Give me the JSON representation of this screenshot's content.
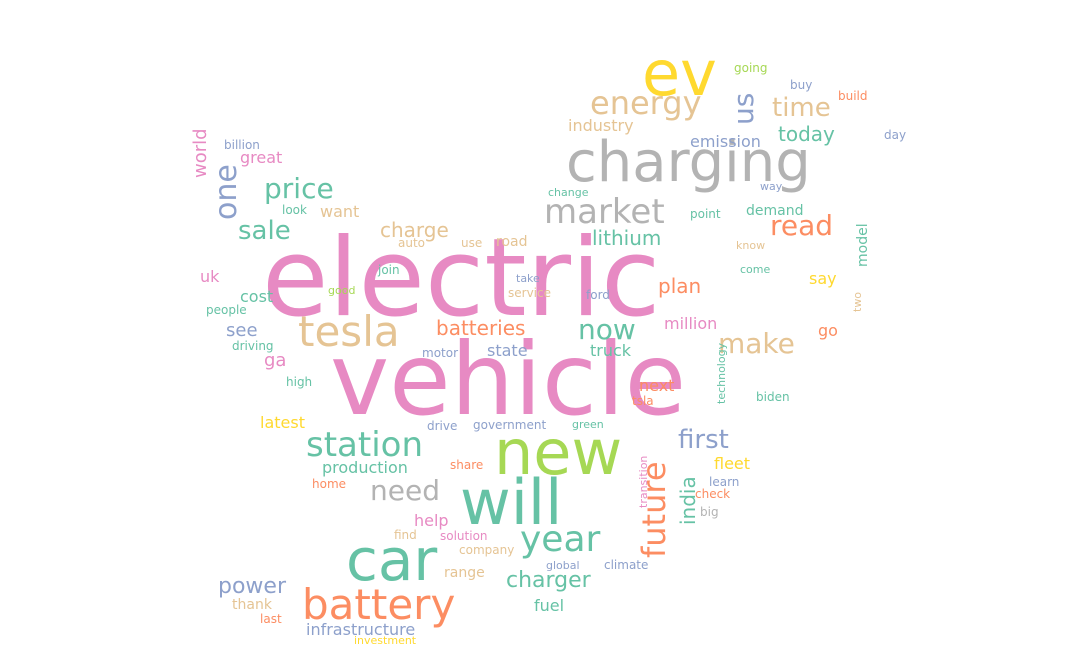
{
  "palette": {
    "pink": "#e78ac3",
    "teal": "#66c2a5",
    "orange": "#fc8d62",
    "blue": "#8da0cb",
    "green": "#a6d854",
    "yellow": "#ffd92f",
    "tan": "#e5c494",
    "gray": "#b3b3b3"
  },
  "words": [
    {
      "text": "electric",
      "color": "pink"
    },
    {
      "text": "vehicle",
      "color": "pink"
    },
    {
      "text": "charging",
      "color": "gray"
    },
    {
      "text": "ev",
      "color": "yellow"
    },
    {
      "text": "new",
      "color": "green"
    },
    {
      "text": "will",
      "color": "teal"
    },
    {
      "text": "car",
      "color": "teal"
    },
    {
      "text": "battery",
      "color": "orange"
    },
    {
      "text": "tesla",
      "color": "tan"
    },
    {
      "text": "energy",
      "color": "tan"
    },
    {
      "text": "us",
      "color": "blue"
    },
    {
      "text": "time",
      "color": "tan"
    },
    {
      "text": "market",
      "color": "gray"
    },
    {
      "text": "station",
      "color": "teal"
    },
    {
      "text": "year",
      "color": "teal"
    },
    {
      "text": "future",
      "color": "orange"
    },
    {
      "text": "price",
      "color": "teal"
    },
    {
      "text": "one",
      "color": "blue"
    },
    {
      "text": "sale",
      "color": "teal"
    },
    {
      "text": "read",
      "color": "orange"
    },
    {
      "text": "now",
      "color": "teal"
    },
    {
      "text": "make",
      "color": "tan"
    },
    {
      "text": "need",
      "color": "gray"
    },
    {
      "text": "first",
      "color": "blue"
    },
    {
      "text": "charger",
      "color": "teal"
    },
    {
      "text": "power",
      "color": "blue"
    },
    {
      "text": "today",
      "color": "teal"
    },
    {
      "text": "lithium",
      "color": "teal"
    },
    {
      "text": "charge",
      "color": "tan"
    },
    {
      "text": "plan",
      "color": "orange"
    },
    {
      "text": "batteries",
      "color": "orange"
    },
    {
      "text": "world",
      "color": "pink"
    },
    {
      "text": "india",
      "color": "teal"
    },
    {
      "text": "emission",
      "color": "blue"
    },
    {
      "text": "industry",
      "color": "tan"
    },
    {
      "text": "infrastructure",
      "color": "blue"
    },
    {
      "text": "production",
      "color": "teal"
    },
    {
      "text": "fuel",
      "color": "teal"
    },
    {
      "text": "fleet",
      "color": "yellow"
    },
    {
      "text": "truck",
      "color": "teal"
    },
    {
      "text": "state",
      "color": "blue"
    },
    {
      "text": "million",
      "color": "pink"
    },
    {
      "text": "see",
      "color": "blue"
    },
    {
      "text": "cost",
      "color": "teal"
    },
    {
      "text": "ga",
      "color": "pink"
    },
    {
      "text": "demand",
      "color": "teal"
    },
    {
      "text": "help",
      "color": "pink"
    },
    {
      "text": "go",
      "color": "orange"
    },
    {
      "text": "next",
      "color": "orange"
    },
    {
      "text": "range",
      "color": "tan"
    },
    {
      "text": "great",
      "color": "pink"
    },
    {
      "text": "uk",
      "color": "pink"
    },
    {
      "text": "want",
      "color": "tan"
    },
    {
      "text": "latest",
      "color": "yellow"
    },
    {
      "text": "say",
      "color": "yellow"
    },
    {
      "text": "road",
      "color": "tan"
    },
    {
      "text": "model",
      "color": "teal"
    },
    {
      "text": "thank",
      "color": "tan"
    },
    {
      "text": "going",
      "color": "green"
    },
    {
      "text": "buy",
      "color": "blue"
    },
    {
      "text": "build",
      "color": "orange"
    },
    {
      "text": "day",
      "color": "blue"
    },
    {
      "text": "billion",
      "color": "blue"
    },
    {
      "text": "look",
      "color": "teal"
    },
    {
      "text": "auto",
      "color": "tan"
    },
    {
      "text": "use",
      "color": "tan"
    },
    {
      "text": "change",
      "color": "teal"
    },
    {
      "text": "way",
      "color": "blue"
    },
    {
      "text": "point",
      "color": "teal"
    },
    {
      "text": "know",
      "color": "tan"
    },
    {
      "text": "come",
      "color": "teal"
    },
    {
      "text": "join",
      "color": "teal"
    },
    {
      "text": "take",
      "color": "blue"
    },
    {
      "text": "good",
      "color": "green"
    },
    {
      "text": "service",
      "color": "tan"
    },
    {
      "text": "ford",
      "color": "blue"
    },
    {
      "text": "two",
      "color": "tan"
    },
    {
      "text": "people",
      "color": "teal"
    },
    {
      "text": "driving",
      "color": "teal"
    },
    {
      "text": "motor",
      "color": "blue"
    },
    {
      "text": "high",
      "color": "teal"
    },
    {
      "text": "technology",
      "color": "teal"
    },
    {
      "text": "biden",
      "color": "teal"
    },
    {
      "text": "tsla",
      "color": "orange"
    },
    {
      "text": "drive",
      "color": "blue"
    },
    {
      "text": "government",
      "color": "blue"
    },
    {
      "text": "green",
      "color": "teal"
    },
    {
      "text": "transition",
      "color": "pink"
    },
    {
      "text": "share",
      "color": "orange"
    },
    {
      "text": "home",
      "color": "orange"
    },
    {
      "text": "learn",
      "color": "blue"
    },
    {
      "text": "check",
      "color": "orange"
    },
    {
      "text": "big",
      "color": "gray"
    },
    {
      "text": "find",
      "color": "tan"
    },
    {
      "text": "solution",
      "color": "pink"
    },
    {
      "text": "company",
      "color": "tan"
    },
    {
      "text": "global",
      "color": "blue"
    },
    {
      "text": "climate",
      "color": "blue"
    },
    {
      "text": "last",
      "color": "orange"
    },
    {
      "text": "investment",
      "color": "yellow"
    }
  ]
}
